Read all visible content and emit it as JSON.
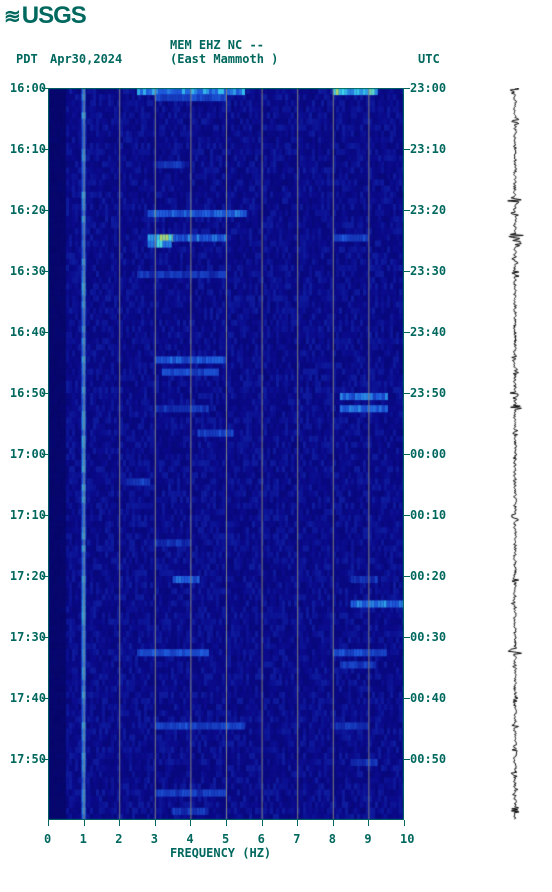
{
  "logo_text": "USGS",
  "header": {
    "left_tz": "PDT",
    "date": "Apr30,2024",
    "station_line1": "MEM EHZ NC --",
    "station_line2": "(East Mammoth )",
    "right_tz": "UTC"
  },
  "spectrogram": {
    "type": "spectrogram",
    "xlabel": "FREQUENCY (HZ)",
    "xlim": [
      0,
      10
    ],
    "xticks": [
      0,
      1,
      2,
      3,
      4,
      5,
      6,
      7,
      8,
      9,
      10
    ],
    "left_time_labels": [
      "16:00",
      "16:10",
      "16:20",
      "16:30",
      "16:40",
      "16:50",
      "17:00",
      "17:10",
      "17:20",
      "17:30",
      "17:40",
      "17:50"
    ],
    "right_time_labels": [
      "23:00",
      "23:10",
      "23:20",
      "23:30",
      "23:40",
      "23:50",
      "00:00",
      "00:10",
      "00:20",
      "00:30",
      "00:40",
      "00:50"
    ],
    "time_step_minutes": 10,
    "total_rows": 120,
    "background_color": "#0a0a8c",
    "dark_color": "#040460",
    "mid_color": "#1e5adc",
    "bright_color": "#3cd8f0",
    "hot_color": "#f0d020",
    "grid_color": "#808080",
    "tick_color": "#00685e",
    "persistent_line_hz": 1.0,
    "events": [
      {
        "row": 0,
        "hz_start": 2.5,
        "hz_end": 5.5,
        "intensity": 0.8
      },
      {
        "row": 0,
        "hz_start": 8.0,
        "hz_end": 9.2,
        "intensity": 0.95
      },
      {
        "row": 1,
        "hz_start": 3.0,
        "hz_end": 5.0,
        "intensity": 0.6
      },
      {
        "row": 12,
        "hz_start": 3.0,
        "hz_end": 3.8,
        "intensity": 0.5
      },
      {
        "row": 20,
        "hz_start": 2.8,
        "hz_end": 5.5,
        "intensity": 0.7
      },
      {
        "row": 24,
        "hz_start": 2.8,
        "hz_end": 3.5,
        "intensity": 1.0
      },
      {
        "row": 24,
        "hz_start": 3.5,
        "hz_end": 5.0,
        "intensity": 0.7
      },
      {
        "row": 24,
        "hz_start": 8.0,
        "hz_end": 9.0,
        "intensity": 0.6
      },
      {
        "row": 25,
        "hz_start": 2.8,
        "hz_end": 3.4,
        "intensity": 0.9
      },
      {
        "row": 30,
        "hz_start": 2.5,
        "hz_end": 5.0,
        "intensity": 0.5
      },
      {
        "row": 44,
        "hz_start": 3.0,
        "hz_end": 5.0,
        "intensity": 0.65
      },
      {
        "row": 46,
        "hz_start": 3.2,
        "hz_end": 4.8,
        "intensity": 0.6
      },
      {
        "row": 50,
        "hz_start": 8.2,
        "hz_end": 9.5,
        "intensity": 0.7
      },
      {
        "row": 52,
        "hz_start": 3.0,
        "hz_end": 4.5,
        "intensity": 0.5
      },
      {
        "row": 52,
        "hz_start": 8.2,
        "hz_end": 9.5,
        "intensity": 0.7
      },
      {
        "row": 56,
        "hz_start": 4.2,
        "hz_end": 5.2,
        "intensity": 0.6
      },
      {
        "row": 64,
        "hz_start": 2.2,
        "hz_end": 2.8,
        "intensity": 0.55
      },
      {
        "row": 74,
        "hz_start": 3.0,
        "hz_end": 4.0,
        "intensity": 0.5
      },
      {
        "row": 80,
        "hz_start": 3.5,
        "hz_end": 4.2,
        "intensity": 0.7
      },
      {
        "row": 80,
        "hz_start": 8.5,
        "hz_end": 9.2,
        "intensity": 0.5
      },
      {
        "row": 84,
        "hz_start": 8.5,
        "hz_end": 10.0,
        "intensity": 0.75
      },
      {
        "row": 92,
        "hz_start": 2.5,
        "hz_end": 4.5,
        "intensity": 0.65
      },
      {
        "row": 92,
        "hz_start": 8.0,
        "hz_end": 9.5,
        "intensity": 0.6
      },
      {
        "row": 94,
        "hz_start": 8.2,
        "hz_end": 9.2,
        "intensity": 0.55
      },
      {
        "row": 104,
        "hz_start": 3.0,
        "hz_end": 5.5,
        "intensity": 0.6
      },
      {
        "row": 104,
        "hz_start": 8.0,
        "hz_end": 9.0,
        "intensity": 0.5
      },
      {
        "row": 110,
        "hz_start": 8.5,
        "hz_end": 9.2,
        "intensity": 0.5
      },
      {
        "row": 115,
        "hz_start": 3.0,
        "hz_end": 5.0,
        "intensity": 0.55
      },
      {
        "row": 118,
        "hz_start": 3.5,
        "hz_end": 4.5,
        "intensity": 0.5
      }
    ]
  },
  "seismogram": {
    "color": "#000000",
    "centerline_x": 15,
    "width": 30,
    "bursts": [
      {
        "row": 0,
        "amp": 6
      },
      {
        "row": 5,
        "amp": 4
      },
      {
        "row": 18,
        "amp": 8
      },
      {
        "row": 20,
        "amp": 5
      },
      {
        "row": 24,
        "amp": 10
      },
      {
        "row": 25,
        "amp": 7
      },
      {
        "row": 28,
        "amp": 4
      },
      {
        "row": 30,
        "amp": 5
      },
      {
        "row": 44,
        "amp": 4
      },
      {
        "row": 46,
        "amp": 4
      },
      {
        "row": 50,
        "amp": 6
      },
      {
        "row": 52,
        "amp": 7
      },
      {
        "row": 56,
        "amp": 4
      },
      {
        "row": 60,
        "amp": 3
      },
      {
        "row": 70,
        "amp": 4
      },
      {
        "row": 74,
        "amp": 3
      },
      {
        "row": 80,
        "amp": 4
      },
      {
        "row": 84,
        "amp": 5
      },
      {
        "row": 92,
        "amp": 7
      },
      {
        "row": 94,
        "amp": 4
      },
      {
        "row": 100,
        "amp": 3
      },
      {
        "row": 104,
        "amp": 5
      },
      {
        "row": 108,
        "amp": 3
      },
      {
        "row": 112,
        "amp": 4
      },
      {
        "row": 115,
        "amp": 3
      },
      {
        "row": 118,
        "amp": 4
      }
    ]
  }
}
